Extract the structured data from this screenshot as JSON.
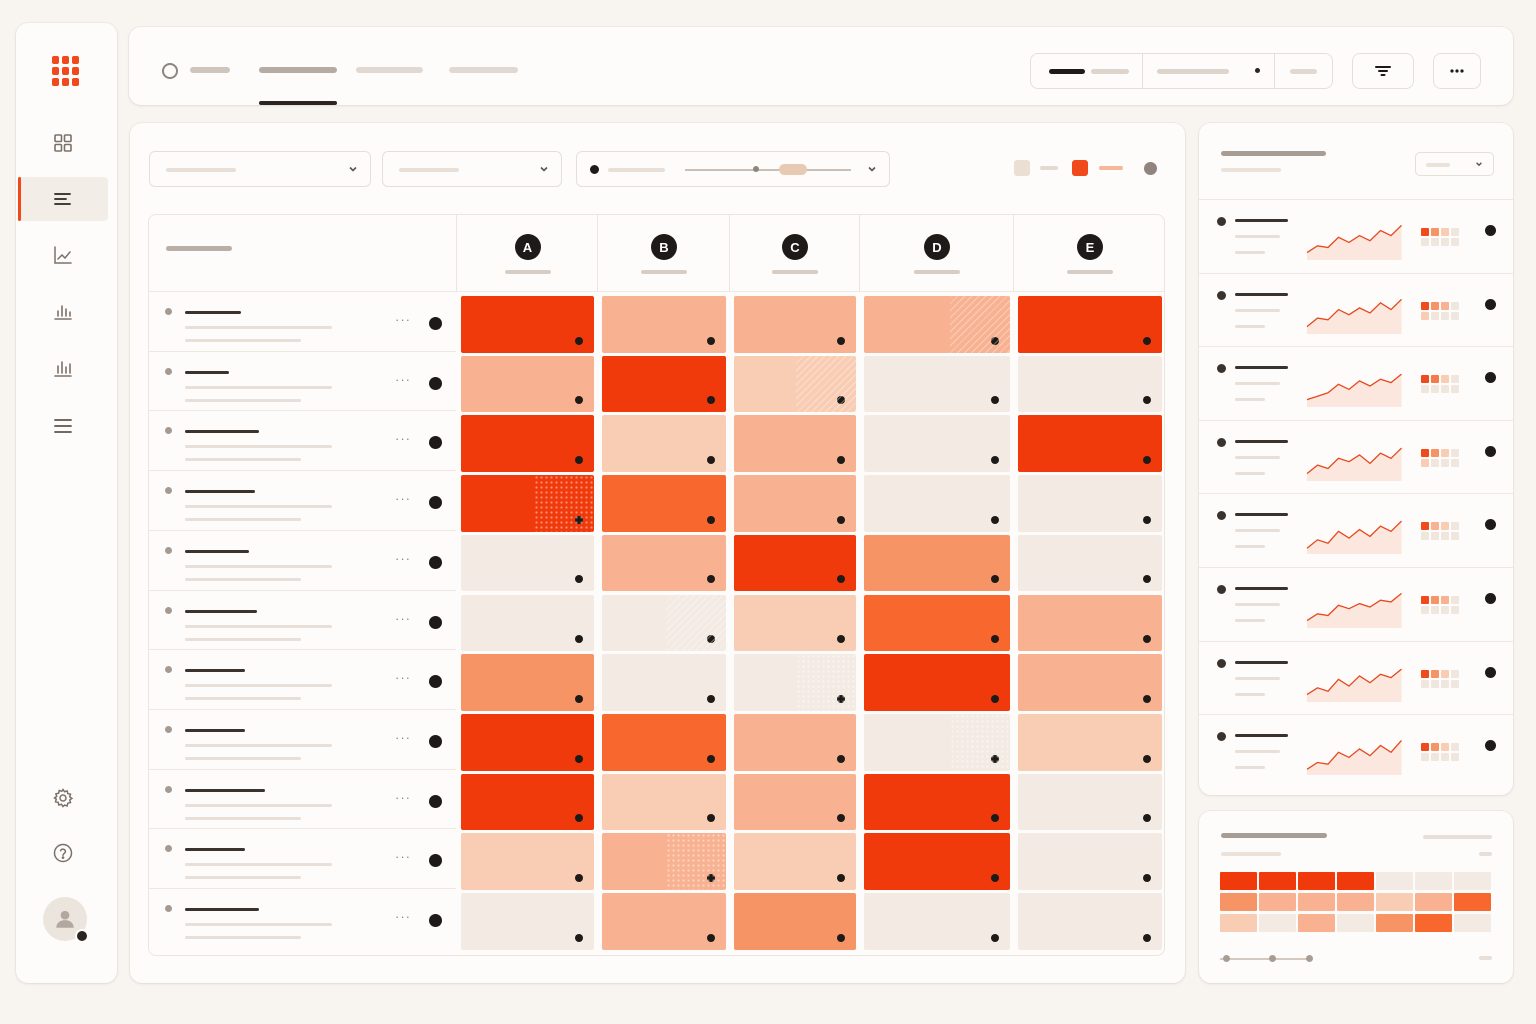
{
  "heatmap": {
    "columns": [
      "A",
      "B",
      "C",
      "D",
      "E"
    ],
    "rows": [
      {
        "levels": [
          5,
          2,
          2,
          2,
          5
        ],
        "textures": [
          "",
          "",
          "",
          "hatch",
          ""
        ]
      },
      {
        "levels": [
          2,
          5,
          1,
          0,
          0
        ],
        "textures": [
          "",
          "",
          "hatch",
          "",
          ""
        ]
      },
      {
        "levels": [
          5,
          1,
          2,
          0,
          5
        ],
        "textures": [
          "",
          "",
          "",
          "",
          ""
        ]
      },
      {
        "levels": [
          5,
          4,
          2,
          0,
          0
        ],
        "textures": [
          "dots",
          "",
          "",
          "",
          ""
        ]
      },
      {
        "levels": [
          0,
          2,
          5,
          3,
          0
        ],
        "textures": [
          "",
          "",
          "",
          "",
          ""
        ]
      },
      {
        "levels": [
          0,
          0,
          1,
          4,
          2
        ],
        "textures": [
          "",
          "hatch",
          "",
          "",
          ""
        ]
      },
      {
        "levels": [
          3,
          0,
          0,
          5,
          2
        ],
        "textures": [
          "",
          "",
          "dots",
          "",
          ""
        ]
      },
      {
        "levels": [
          5,
          4,
          2,
          0,
          1
        ],
        "textures": [
          "",
          "",
          "",
          "dots",
          ""
        ]
      },
      {
        "levels": [
          5,
          1,
          2,
          5,
          0
        ],
        "textures": [
          "",
          "",
          "",
          "",
          ""
        ]
      },
      {
        "levels": [
          1,
          2,
          1,
          5,
          0
        ],
        "textures": [
          "",
          "dots",
          "",
          "",
          ""
        ]
      },
      {
        "levels": [
          0,
          2,
          3,
          0,
          0
        ],
        "textures": [
          "",
          "",
          "",
          "",
          ""
        ]
      }
    ]
  },
  "legend": {
    "swatches": [
      "#eadfd2",
      "#f04a1c"
    ]
  },
  "trend_rows": [
    {
      "spark": [
        0.1,
        0.3,
        0.25,
        0.55,
        0.4,
        0.6,
        0.45,
        0.75,
        0.6,
        0.9
      ],
      "mini": [
        5,
        3,
        1,
        0,
        0,
        0,
        0,
        0
      ]
    },
    {
      "spark": [
        0.1,
        0.35,
        0.3,
        0.6,
        0.45,
        0.65,
        0.5,
        0.8,
        0.6,
        0.9
      ],
      "mini": [
        5,
        3,
        2,
        0,
        1,
        0,
        0,
        0
      ]
    },
    {
      "spark": [
        0.1,
        0.2,
        0.3,
        0.55,
        0.4,
        0.65,
        0.5,
        0.7,
        0.6,
        0.85
      ],
      "mini": [
        5,
        4,
        1,
        0,
        0,
        0,
        0,
        0
      ]
    },
    {
      "spark": [
        0.1,
        0.35,
        0.25,
        0.55,
        0.45,
        0.65,
        0.4,
        0.7,
        0.55,
        0.85
      ],
      "mini": [
        5,
        3,
        1,
        0,
        1,
        0,
        0,
        0
      ]
    },
    {
      "spark": [
        0.05,
        0.3,
        0.2,
        0.55,
        0.35,
        0.6,
        0.4,
        0.7,
        0.55,
        0.85
      ],
      "mini": [
        5,
        2,
        1,
        0,
        0,
        0,
        0,
        0
      ]
    },
    {
      "spark": [
        0.1,
        0.3,
        0.25,
        0.55,
        0.45,
        0.6,
        0.5,
        0.7,
        0.65,
        0.9
      ],
      "mini": [
        5,
        3,
        2,
        0,
        0,
        0,
        0,
        0
      ]
    },
    {
      "spark": [
        0.1,
        0.3,
        0.2,
        0.55,
        0.35,
        0.65,
        0.45,
        0.7,
        0.6,
        0.85
      ],
      "mini": [
        5,
        3,
        1,
        0,
        0,
        0,
        0,
        0
      ]
    },
    {
      "spark": [
        0.05,
        0.25,
        0.2,
        0.55,
        0.4,
        0.65,
        0.45,
        0.75,
        0.55,
        0.9
      ],
      "mini": [
        5,
        3,
        1,
        0,
        0,
        0,
        0,
        0
      ]
    }
  ],
  "bottom_heatmap": [
    [
      5,
      5,
      5,
      5,
      0,
      0,
      0
    ],
    [
      3,
      2,
      2,
      2,
      1,
      2,
      4
    ],
    [
      1,
      0,
      2,
      0,
      3,
      4,
      0
    ]
  ],
  "palette": [
    "#f3ebe3",
    "#f9cdb4",
    "#f8b292",
    "#f69466",
    "#f8672e",
    "#f13a0c"
  ]
}
